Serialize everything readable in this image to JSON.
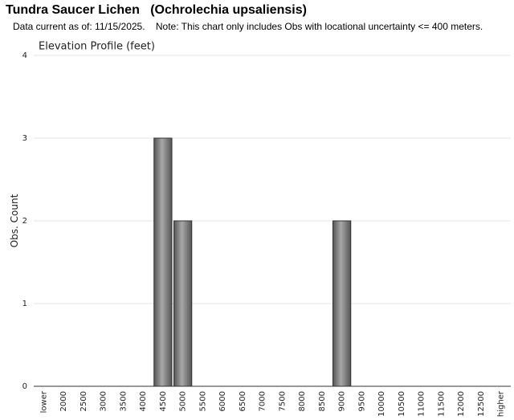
{
  "chart_data": {
    "type": "bar",
    "title": "Tundra Saucer Lichen   (Ochrolechia upsaliensis)",
    "subtitle": "Data current as of: 11/15/2025.    Note: This chart only includes Obs with locational uncertainty <= 400 meters.",
    "chart_title": "Elevation Profile (feet)",
    "y_label": "Obs. Count",
    "categories": [
      "lower",
      "2000",
      "2500",
      "3000",
      "3500",
      "4000",
      "4500",
      "5000",
      "5500",
      "6000",
      "6500",
      "7000",
      "7500",
      "8000",
      "8500",
      "9000",
      "9500",
      "10000",
      "10500",
      "11000",
      "11500",
      "12000",
      "12500",
      "higher"
    ],
    "values": [
      0,
      0,
      0,
      0,
      0,
      0,
      3,
      2,
      0,
      0,
      0,
      0,
      0,
      0,
      0,
      2,
      0,
      0,
      0,
      0,
      0,
      0,
      0,
      0
    ],
    "color": "#a8a8a8",
    "ylim": [
      0,
      4
    ],
    "yticks": [
      0,
      1,
      2,
      3,
      4
    ],
    "grid": true
  }
}
